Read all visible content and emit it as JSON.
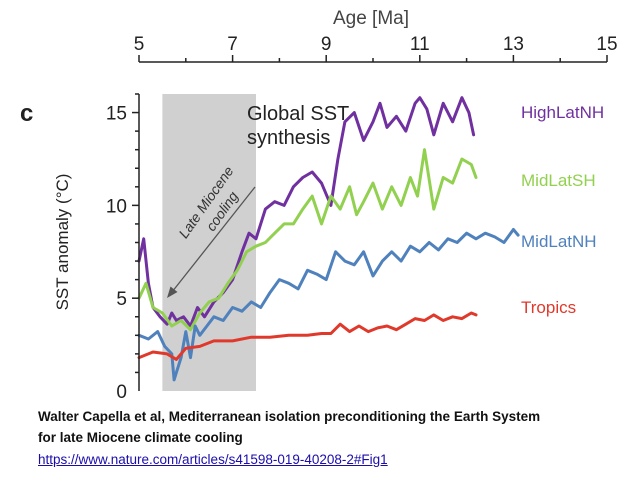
{
  "panel_letter": "c",
  "caption": {
    "line1": "Walter Capella et al, Mediterranean isolation preconditioning the Earth System",
    "line2": " for late Miocene climate cooling",
    "link": "https://www.nature.com/articles/s41598-019-40208-2#Fig1"
  },
  "chart_data": {
    "type": "line",
    "title": "Global SST synthesis",
    "xlabel": "Age [Ma]",
    "ylabel": "SST anomaly (°C)",
    "xlim": [
      5,
      15
    ],
    "ylim": [
      0,
      16
    ],
    "x_ticks": [
      5,
      7,
      9,
      11,
      13,
      15
    ],
    "y_ticks": [
      0,
      5,
      10,
      15
    ],
    "x_axis_position": "top",
    "grid": false,
    "shaded_region": {
      "x0": 5.5,
      "x1": 7.5,
      "label": "Late Miocene cooling",
      "color": "#c8c8c8"
    },
    "series": [
      {
        "name": "HighLatNH",
        "color": "#7030a0",
        "x": [
          5.0,
          5.1,
          5.2,
          5.3,
          5.45,
          5.6,
          5.7,
          5.8,
          5.95,
          6.1,
          6.25,
          6.4,
          6.6,
          6.8,
          7.0,
          7.2,
          7.35,
          7.5,
          7.7,
          7.9,
          8.1,
          8.3,
          8.5,
          8.7,
          8.9,
          9.1,
          9.25,
          9.4,
          9.6,
          9.8,
          10.0,
          10.15,
          10.3,
          10.5,
          10.7,
          10.9,
          11.0,
          11.15,
          11.3,
          11.5,
          11.7,
          11.9,
          12.05,
          12.15
        ],
        "y": [
          7.0,
          8.2,
          5.8,
          4.5,
          4.0,
          3.6,
          4.2,
          3.8,
          4.0,
          3.5,
          4.5,
          4.0,
          4.8,
          5.3,
          6.0,
          7.5,
          8.5,
          8.2,
          9.8,
          10.2,
          10.0,
          11.0,
          11.5,
          11.8,
          11.2,
          10.0,
          12.5,
          14.5,
          15.0,
          13.5,
          14.5,
          15.5,
          14.2,
          14.8,
          14.0,
          15.5,
          15.8,
          15.2,
          13.8,
          15.5,
          14.5,
          15.8,
          15.0,
          13.8
        ]
      },
      {
        "name": "MidLatSH",
        "color": "#92d050",
        "x": [
          5.0,
          5.15,
          5.3,
          5.5,
          5.7,
          5.9,
          6.1,
          6.3,
          6.5,
          6.7,
          6.9,
          7.1,
          7.3,
          7.5,
          7.7,
          7.9,
          8.1,
          8.3,
          8.5,
          8.7,
          8.9,
          9.1,
          9.3,
          9.5,
          9.65,
          9.8,
          10.0,
          10.2,
          10.4,
          10.6,
          10.8,
          10.95,
          11.1,
          11.3,
          11.5,
          11.7,
          11.9,
          12.1,
          12.2
        ],
        "y": [
          5.0,
          5.8,
          4.5,
          4.2,
          3.5,
          3.8,
          3.3,
          4.2,
          4.8,
          5.0,
          5.8,
          6.5,
          7.5,
          7.8,
          8.0,
          8.5,
          9.0,
          9.0,
          9.8,
          10.5,
          9.0,
          10.5,
          9.8,
          11.0,
          9.5,
          10.2,
          11.2,
          9.8,
          11.0,
          10.0,
          11.5,
          10.5,
          13.0,
          9.8,
          11.5,
          11.2,
          12.5,
          12.2,
          11.5
        ]
      },
      {
        "name": "MidLatNH",
        "color": "#4f81bd",
        "x": [
          5.0,
          5.2,
          5.4,
          5.55,
          5.7,
          5.75,
          5.8,
          5.9,
          6.0,
          6.1,
          6.2,
          6.3,
          6.45,
          6.6,
          6.8,
          7.0,
          7.2,
          7.4,
          7.6,
          7.8,
          8.0,
          8.2,
          8.4,
          8.6,
          8.8,
          9.0,
          9.2,
          9.4,
          9.6,
          9.8,
          10.0,
          10.2,
          10.4,
          10.6,
          10.8,
          11.0,
          11.2,
          11.4,
          11.6,
          11.8,
          12.0,
          12.2,
          12.4,
          12.6,
          12.8,
          13.0,
          13.1
        ],
        "y": [
          3.0,
          2.8,
          3.2,
          2.4,
          2.0,
          0.6,
          1.0,
          1.8,
          3.2,
          1.8,
          3.5,
          3.0,
          3.5,
          4.0,
          3.8,
          4.5,
          4.3,
          4.8,
          4.5,
          5.3,
          6.0,
          5.8,
          5.5,
          6.5,
          6.3,
          6.0,
          7.5,
          7.0,
          6.8,
          7.5,
          6.2,
          7.0,
          7.5,
          7.0,
          7.8,
          7.5,
          8.0,
          7.6,
          8.2,
          8.0,
          8.5,
          8.2,
          8.5,
          8.3,
          8.0,
          8.7,
          8.4
        ]
      },
      {
        "name": "Tropics",
        "color": "#e0392b",
        "x": [
          5.0,
          5.3,
          5.6,
          5.8,
          6.0,
          6.3,
          6.6,
          7.0,
          7.4,
          7.8,
          8.2,
          8.6,
          8.9,
          9.1,
          9.3,
          9.5,
          9.7,
          9.9,
          10.1,
          10.3,
          10.5,
          10.7,
          10.9,
          11.1,
          11.3,
          11.5,
          11.7,
          11.9,
          12.1,
          12.2
        ],
        "y": [
          1.8,
          2.1,
          2.0,
          1.7,
          2.3,
          2.4,
          2.7,
          2.7,
          2.9,
          2.9,
          3.0,
          3.0,
          3.1,
          3.1,
          3.6,
          3.2,
          3.5,
          3.2,
          3.4,
          3.5,
          3.3,
          3.6,
          3.9,
          3.8,
          4.1,
          3.8,
          4.0,
          3.9,
          4.2,
          4.1
        ]
      }
    ]
  }
}
